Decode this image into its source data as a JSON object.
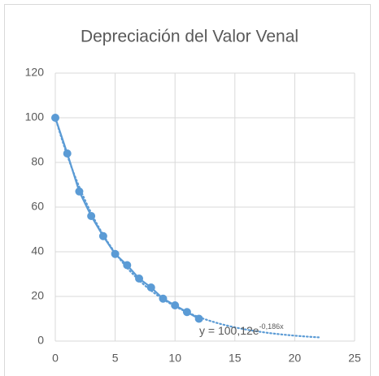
{
  "chart_data": {
    "type": "scatter",
    "title": "Depreciación del Valor Venal",
    "series": [
      {
        "color": "#5b9bd5",
        "x": [
          0,
          1,
          2,
          3,
          4,
          5,
          6,
          7,
          8,
          9,
          10,
          11,
          12
        ],
        "values": [
          100,
          84,
          67,
          56,
          47,
          39,
          34,
          28,
          24,
          19,
          16,
          13,
          10
        ]
      }
    ],
    "trendline": {
      "a": 100.12,
      "b": -0.186,
      "xrange": [
        0,
        22
      ],
      "label": "y = 100,12e",
      "label_exp": "-0,186x"
    },
    "xlim": [
      0,
      25
    ],
    "xticks": [
      0,
      5,
      10,
      15,
      20,
      25
    ],
    "ylim": [
      0,
      120
    ],
    "yticks": [
      0,
      20,
      40,
      60,
      80,
      100,
      120
    ],
    "grid": true
  }
}
